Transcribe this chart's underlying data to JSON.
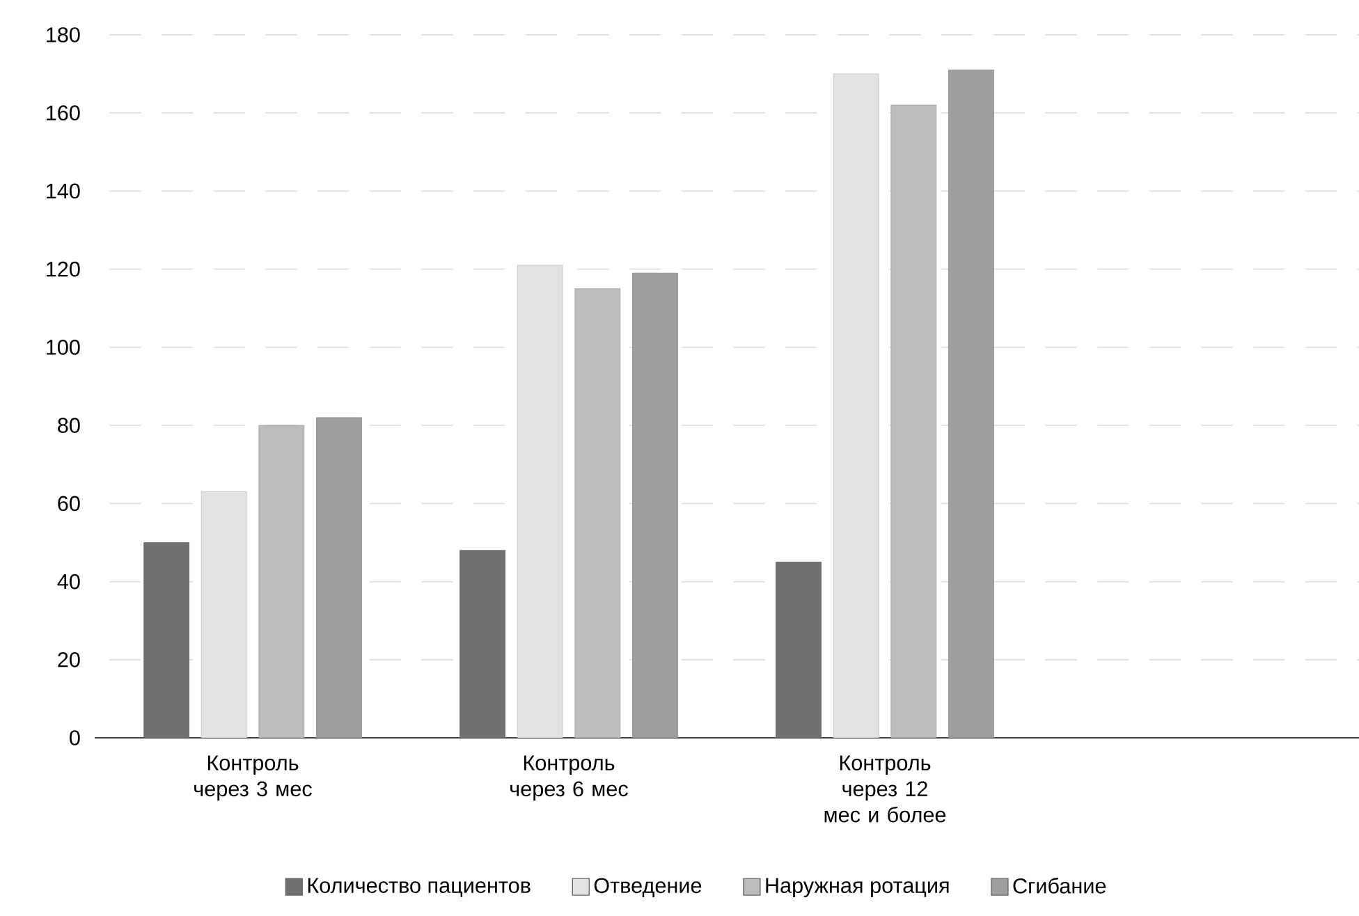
{
  "chart_data": {
    "type": "bar",
    "categories": [
      "Контроль через 3 мес",
      "Контроль через 6 мес",
      "Контроль через 12 мес и более",
      null
    ],
    "series": [
      {
        "name": "Количество пациентов",
        "color": "#707070",
        "values": [
          50,
          48,
          45,
          null
        ]
      },
      {
        "name": "Отведение",
        "color": "#e2e2e2",
        "values": [
          63,
          121,
          170,
          null
        ]
      },
      {
        "name": "Наружная ротация",
        "color": "#bcbcbc",
        "values": [
          80,
          115,
          162,
          null
        ]
      },
      {
        "name": "Сгибание",
        "color": "#9e9e9e",
        "values": [
          82,
          119,
          171,
          null
        ]
      }
    ],
    "ylim": [
      0,
      180
    ],
    "yticks": [
      0,
      20,
      40,
      60,
      80,
      100,
      120,
      140,
      160,
      180
    ],
    "grid": "y",
    "legend": "bottom"
  }
}
